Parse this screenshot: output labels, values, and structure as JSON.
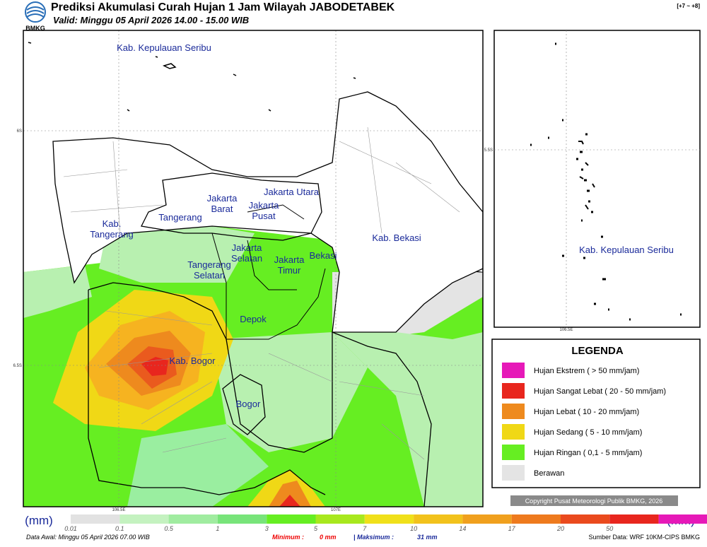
{
  "header": {
    "title": "Prediksi Akumulasi Curah Hujan 1 Jam Wilayah JABODETABEK",
    "subtitle": "Valid: Minggu 05 April 2026 14.00 - 15.00 WIB",
    "logo": "BMKG",
    "corner": "[+7 ~ +8]"
  },
  "map": {
    "labels": [
      {
        "lines": [
          "Kab. Kepulauan Seribu"
        ]
      },
      {
        "lines": [
          "Jakarta Utara"
        ]
      },
      {
        "lines": [
          "Jakarta",
          "Barat"
        ]
      },
      {
        "lines": [
          "Jakarta",
          "Pusat"
        ]
      },
      {
        "lines": [
          "Tangerang"
        ]
      },
      {
        "lines": [
          "Kab.",
          "Tangerang"
        ]
      },
      {
        "lines": [
          "Tangerang",
          "Selatan"
        ]
      },
      {
        "lines": [
          "Jakarta",
          "Selatan"
        ]
      },
      {
        "lines": [
          "Jakarta",
          "Timur"
        ]
      },
      {
        "lines": [
          "Bekasi"
        ]
      },
      {
        "lines": [
          "Kab. Bekasi"
        ]
      },
      {
        "lines": [
          "Depok"
        ]
      },
      {
        "lines": [
          "Kab. Bogor"
        ]
      },
      {
        "lines": [
          "Bogor"
        ]
      }
    ],
    "axis": {
      "lat": [
        "6S",
        "6.5S"
      ],
      "lon": [
        "106.5E",
        "107E"
      ]
    }
  },
  "inset": {
    "label": "Kab. Kepulauan Seribu",
    "lat": "5.5S",
    "lon": "106.5E"
  },
  "legend": {
    "title": "LEGENDA",
    "items": [
      {
        "label": "Hujan Ekstrem ( > 50 mm/jam)",
        "color": "#e619b8"
      },
      {
        "label": "Hujan Sangat Lebat ( 20 - 50 mm/jam)",
        "color": "#e8261e"
      },
      {
        "label": "Hujan Lebat ( 10 - 20 mm/jam)",
        "color": "#ee8a1e"
      },
      {
        "label": "Hujan Sedang ( 5 - 10 mm/jam)",
        "color": "#f0d816"
      },
      {
        "label": "Hujan Ringan ( 0,1 - 5 mm/jam)",
        "color": "#66ee22"
      },
      {
        "label": "Berawan",
        "color": "#e4e4e4"
      }
    ]
  },
  "copyright": "Copyright Pusat Meteorologi Publik BMKG, 2026",
  "colorbar": {
    "unit": "(mm)",
    "ticks": [
      "0.01",
      "0.1",
      "0.5",
      "1",
      "3",
      "5",
      "7",
      "10",
      "14",
      "17",
      "20",
      "50"
    ]
  },
  "footer": {
    "start": "Data Awal: Minggu 05 April 2026 07.00 WIB",
    "min_label": "Minimum :",
    "min": "0 mm",
    "max_label": "| Maksimum :",
    "max": "31 mm",
    "source": "Sumber Data: WRF 10KM-CIPS BMKG"
  }
}
